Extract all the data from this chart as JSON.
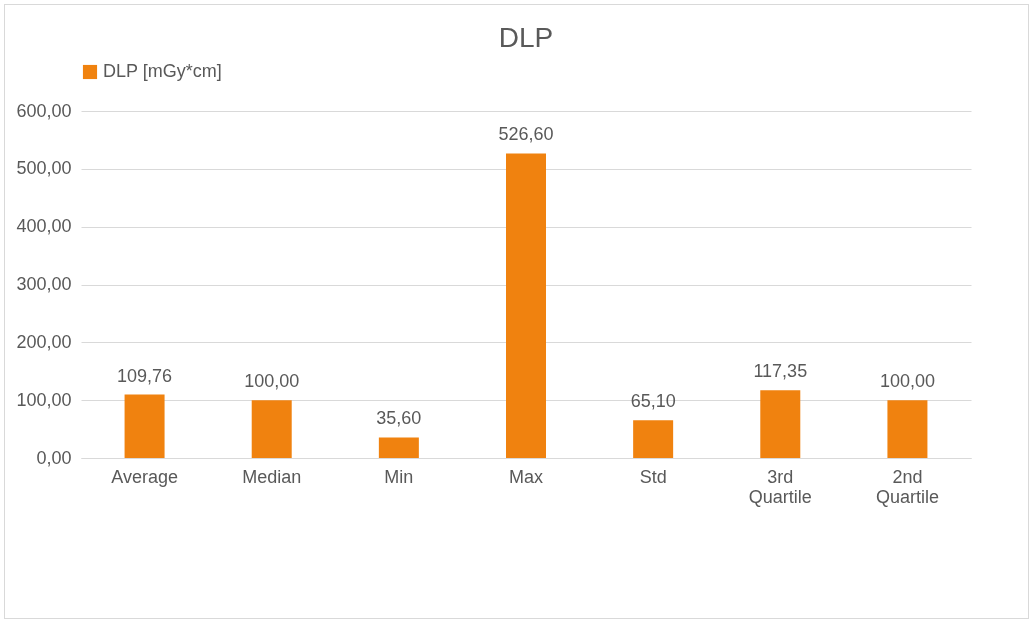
{
  "chart_data": {
    "type": "bar",
    "title": "DLP",
    "categories": [
      "Average",
      "Median",
      "Min",
      "Max",
      "Std",
      "3rd Quartile",
      "2nd Quartile"
    ],
    "series": [
      {
        "name": "DLP [mGy*cm]",
        "color": "#f0820f",
        "values": [
          109.76,
          100,
          35.6,
          526.6,
          65.1,
          117.35,
          100
        ],
        "value_labels": [
          "109,76",
          "100,00",
          "35,60",
          "526,60",
          "65,10",
          "117,35",
          "100,00"
        ]
      }
    ],
    "ylim": [
      0,
      600
    ],
    "yticks": [
      {
        "value": 0,
        "label": "0,00"
      },
      {
        "value": 100,
        "label": "100,00"
      },
      {
        "value": 200,
        "label": "200,00"
      },
      {
        "value": 300,
        "label": "300,00"
      },
      {
        "value": 400,
        "label": "400,00"
      },
      {
        "value": 500,
        "label": "500,00"
      },
      {
        "value": 600,
        "label": "600,00"
      }
    ],
    "grid": "y",
    "legend": "top"
  }
}
